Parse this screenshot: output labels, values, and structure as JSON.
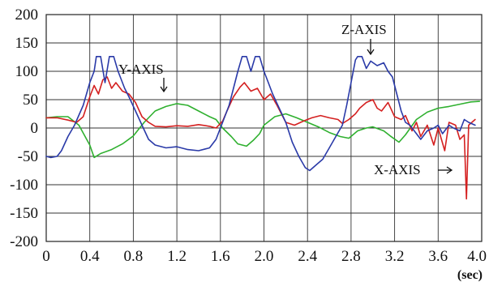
{
  "chart_data": {
    "type": "line",
    "title": "",
    "xlabel": "(sec)",
    "ylabel": "",
    "xlim": [
      0,
      4.0
    ],
    "ylim": [
      -200,
      200
    ],
    "grid": true,
    "x_ticks": [
      "0",
      "0.4",
      "0.8",
      "1.2",
      "1.6",
      "2.0",
      "2.4",
      "2.8",
      "3.2",
      "3.6",
      "4.0"
    ],
    "y_ticks": [
      "200",
      "150",
      "100",
      "50",
      "0",
      "-50",
      "-100",
      "-150",
      "-200"
    ],
    "annotations": [
      {
        "text": "Y-AXIS",
        "points_to": [
          1.1,
          42
        ]
      },
      {
        "text": "Z-AXIS",
        "points_to": [
          2.98,
          118
        ]
      },
      {
        "text": "X-AXIS",
        "points_to": [
          3.85,
          -10
        ]
      }
    ],
    "series": [
      {
        "name": "X-AXIS",
        "color": "#d42020",
        "points": [
          [
            0,
            18
          ],
          [
            0.1,
            18
          ],
          [
            0.2,
            14
          ],
          [
            0.28,
            10
          ],
          [
            0.34,
            20
          ],
          [
            0.4,
            55
          ],
          [
            0.44,
            75
          ],
          [
            0.48,
            60
          ],
          [
            0.52,
            85
          ],
          [
            0.56,
            90
          ],
          [
            0.6,
            70
          ],
          [
            0.64,
            80
          ],
          [
            0.7,
            65
          ],
          [
            0.76,
            60
          ],
          [
            0.82,
            45
          ],
          [
            0.88,
            20
          ],
          [
            0.94,
            10
          ],
          [
            1.0,
            3
          ],
          [
            1.1,
            2
          ],
          [
            1.2,
            4
          ],
          [
            1.3,
            3
          ],
          [
            1.4,
            6
          ],
          [
            1.5,
            3
          ],
          [
            1.56,
            0
          ],
          [
            1.62,
            12
          ],
          [
            1.66,
            30
          ],
          [
            1.72,
            55
          ],
          [
            1.78,
            72
          ],
          [
            1.82,
            80
          ],
          [
            1.88,
            65
          ],
          [
            1.94,
            70
          ],
          [
            2.0,
            50
          ],
          [
            2.06,
            60
          ],
          [
            2.12,
            40
          ],
          [
            2.2,
            10
          ],
          [
            2.28,
            5
          ],
          [
            2.36,
            12
          ],
          [
            2.44,
            18
          ],
          [
            2.52,
            22
          ],
          [
            2.6,
            18
          ],
          [
            2.68,
            15
          ],
          [
            2.72,
            8
          ],
          [
            2.78,
            15
          ],
          [
            2.84,
            25
          ],
          [
            2.88,
            35
          ],
          [
            2.94,
            45
          ],
          [
            3.0,
            50
          ],
          [
            3.04,
            35
          ],
          [
            3.08,
            30
          ],
          [
            3.14,
            45
          ],
          [
            3.2,
            20
          ],
          [
            3.26,
            15
          ],
          [
            3.3,
            22
          ],
          [
            3.36,
            -5
          ],
          [
            3.4,
            10
          ],
          [
            3.44,
            -15
          ],
          [
            3.5,
            5
          ],
          [
            3.56,
            -30
          ],
          [
            3.6,
            0
          ],
          [
            3.66,
            -40
          ],
          [
            3.7,
            10
          ],
          [
            3.76,
            5
          ],
          [
            3.8,
            -20
          ],
          [
            3.84,
            -12
          ],
          [
            3.86,
            -125
          ],
          [
            3.88,
            5
          ],
          [
            3.94,
            15
          ]
        ]
      },
      {
        "name": "Y-AXIS",
        "color": "#2fb02f",
        "points": [
          [
            0,
            18
          ],
          [
            0.1,
            20
          ],
          [
            0.2,
            20
          ],
          [
            0.3,
            5
          ],
          [
            0.4,
            -30
          ],
          [
            0.44,
            -52
          ],
          [
            0.5,
            -45
          ],
          [
            0.6,
            -38
          ],
          [
            0.7,
            -28
          ],
          [
            0.8,
            -14
          ],
          [
            0.9,
            10
          ],
          [
            1.0,
            30
          ],
          [
            1.1,
            38
          ],
          [
            1.2,
            43
          ],
          [
            1.3,
            40
          ],
          [
            1.4,
            30
          ],
          [
            1.5,
            20
          ],
          [
            1.56,
            15
          ],
          [
            1.62,
            0
          ],
          [
            1.7,
            -15
          ],
          [
            1.76,
            -28
          ],
          [
            1.84,
            -32
          ],
          [
            1.9,
            -22
          ],
          [
            1.96,
            -10
          ],
          [
            2.0,
            5
          ],
          [
            2.1,
            20
          ],
          [
            2.2,
            25
          ],
          [
            2.3,
            18
          ],
          [
            2.4,
            10
          ],
          [
            2.5,
            2
          ],
          [
            2.6,
            -8
          ],
          [
            2.7,
            -15
          ],
          [
            2.78,
            -18
          ],
          [
            2.86,
            -5
          ],
          [
            2.94,
            0
          ],
          [
            3.0,
            2
          ],
          [
            3.1,
            -5
          ],
          [
            3.16,
            -14
          ],
          [
            3.24,
            -25
          ],
          [
            3.3,
            -12
          ],
          [
            3.4,
            15
          ],
          [
            3.5,
            28
          ],
          [
            3.6,
            35
          ],
          [
            3.7,
            38
          ],
          [
            3.8,
            42
          ],
          [
            3.9,
            46
          ],
          [
            3.98,
            47
          ]
        ]
      },
      {
        "name": "Z-AXIS",
        "color": "#2a3aa8",
        "points": [
          [
            0,
            -50
          ],
          [
            0.04,
            -52
          ],
          [
            0.1,
            -50
          ],
          [
            0.14,
            -40
          ],
          [
            0.2,
            -15
          ],
          [
            0.26,
            5
          ],
          [
            0.34,
            40
          ],
          [
            0.4,
            80
          ],
          [
            0.44,
            100
          ],
          [
            0.46,
            126
          ],
          [
            0.5,
            126
          ],
          [
            0.54,
            80
          ],
          [
            0.58,
            126
          ],
          [
            0.62,
            126
          ],
          [
            0.66,
            100
          ],
          [
            0.72,
            70
          ],
          [
            0.76,
            55
          ],
          [
            0.82,
            30
          ],
          [
            0.88,
            5
          ],
          [
            0.94,
            -20
          ],
          [
            1.0,
            -30
          ],
          [
            1.1,
            -35
          ],
          [
            1.2,
            -33
          ],
          [
            1.3,
            -38
          ],
          [
            1.4,
            -40
          ],
          [
            1.5,
            -35
          ],
          [
            1.56,
            -20
          ],
          [
            1.62,
            10
          ],
          [
            1.68,
            40
          ],
          [
            1.72,
            70
          ],
          [
            1.76,
            100
          ],
          [
            1.8,
            126
          ],
          [
            1.84,
            126
          ],
          [
            1.88,
            100
          ],
          [
            1.92,
            126
          ],
          [
            1.96,
            126
          ],
          [
            2.0,
            100
          ],
          [
            2.04,
            80
          ],
          [
            2.08,
            60
          ],
          [
            2.14,
            35
          ],
          [
            2.2,
            10
          ],
          [
            2.26,
            -25
          ],
          [
            2.32,
            -50
          ],
          [
            2.38,
            -70
          ],
          [
            2.42,
            -75
          ],
          [
            2.48,
            -65
          ],
          [
            2.54,
            -55
          ],
          [
            2.6,
            -35
          ],
          [
            2.66,
            -15
          ],
          [
            2.72,
            5
          ],
          [
            2.76,
            40
          ],
          [
            2.8,
            80
          ],
          [
            2.84,
            120
          ],
          [
            2.86,
            126
          ],
          [
            2.9,
            126
          ],
          [
            2.94,
            105
          ],
          [
            2.98,
            118
          ],
          [
            3.04,
            110
          ],
          [
            3.1,
            115
          ],
          [
            3.14,
            100
          ],
          [
            3.18,
            90
          ],
          [
            3.22,
            60
          ],
          [
            3.26,
            30
          ],
          [
            3.3,
            10
          ],
          [
            3.34,
            5
          ],
          [
            3.4,
            -10
          ],
          [
            3.44,
            -20
          ],
          [
            3.5,
            -5
          ],
          [
            3.56,
            0
          ],
          [
            3.6,
            5
          ],
          [
            3.64,
            -10
          ],
          [
            3.7,
            5
          ],
          [
            3.74,
            0
          ],
          [
            3.8,
            -5
          ],
          [
            3.84,
            15
          ],
          [
            3.88,
            10
          ],
          [
            3.94,
            5
          ]
        ]
      }
    ]
  }
}
